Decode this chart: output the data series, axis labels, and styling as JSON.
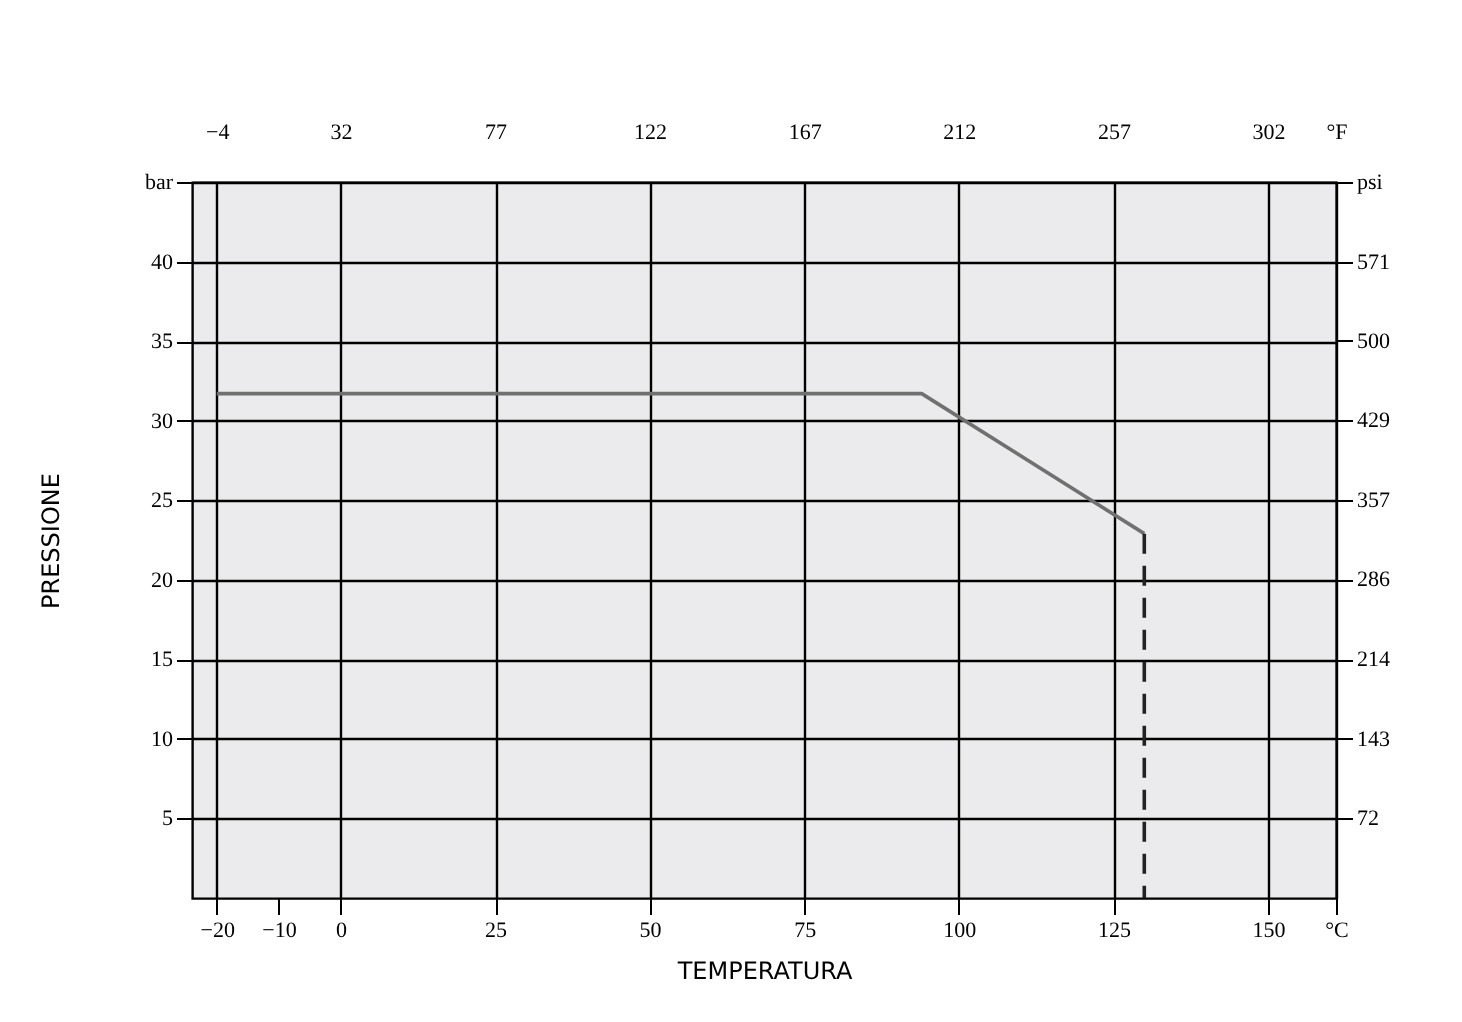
{
  "chart_data": {
    "type": "line",
    "xlabel": "TEMPERATURA",
    "ylabel": "PRESSIONE",
    "xlim": [
      -24,
      161
    ],
    "xticks": [
      -20,
      -10,
      0,
      25,
      50,
      75,
      100,
      125,
      150,
      {
        "value": 161,
        "label": "°C"
      }
    ],
    "x2lim": [
      -11.2,
      321.8
    ],
    "x2ticks": [
      -4,
      32,
      77,
      122,
      167,
      212,
      257,
      302,
      {
        "value": 321.8,
        "label": "°F"
      }
    ],
    "ylim": [
      0,
      45
    ],
    "yticks": [
      5,
      10,
      15,
      20,
      25,
      30,
      35,
      40,
      {
        "value": 45,
        "label": "bar"
      }
    ],
    "y2lim": [
      0,
      642.4
    ],
    "y2ticks": [
      72,
      143,
      214,
      286,
      357,
      429,
      500,
      571,
      {
        "value": 642.4,
        "label": "psi"
      }
    ],
    "grid": true,
    "series": [
      {
        "color": "#707070",
        "x": [
          -20,
          94,
          130
        ],
        "values": [
          31.7,
          31.7,
          22.9
        ],
        "line_style": "solid"
      },
      {
        "color": "#222222",
        "x": [
          130,
          130
        ],
        "values": [
          22.9,
          0
        ],
        "line_style": "dashed"
      }
    ]
  }
}
